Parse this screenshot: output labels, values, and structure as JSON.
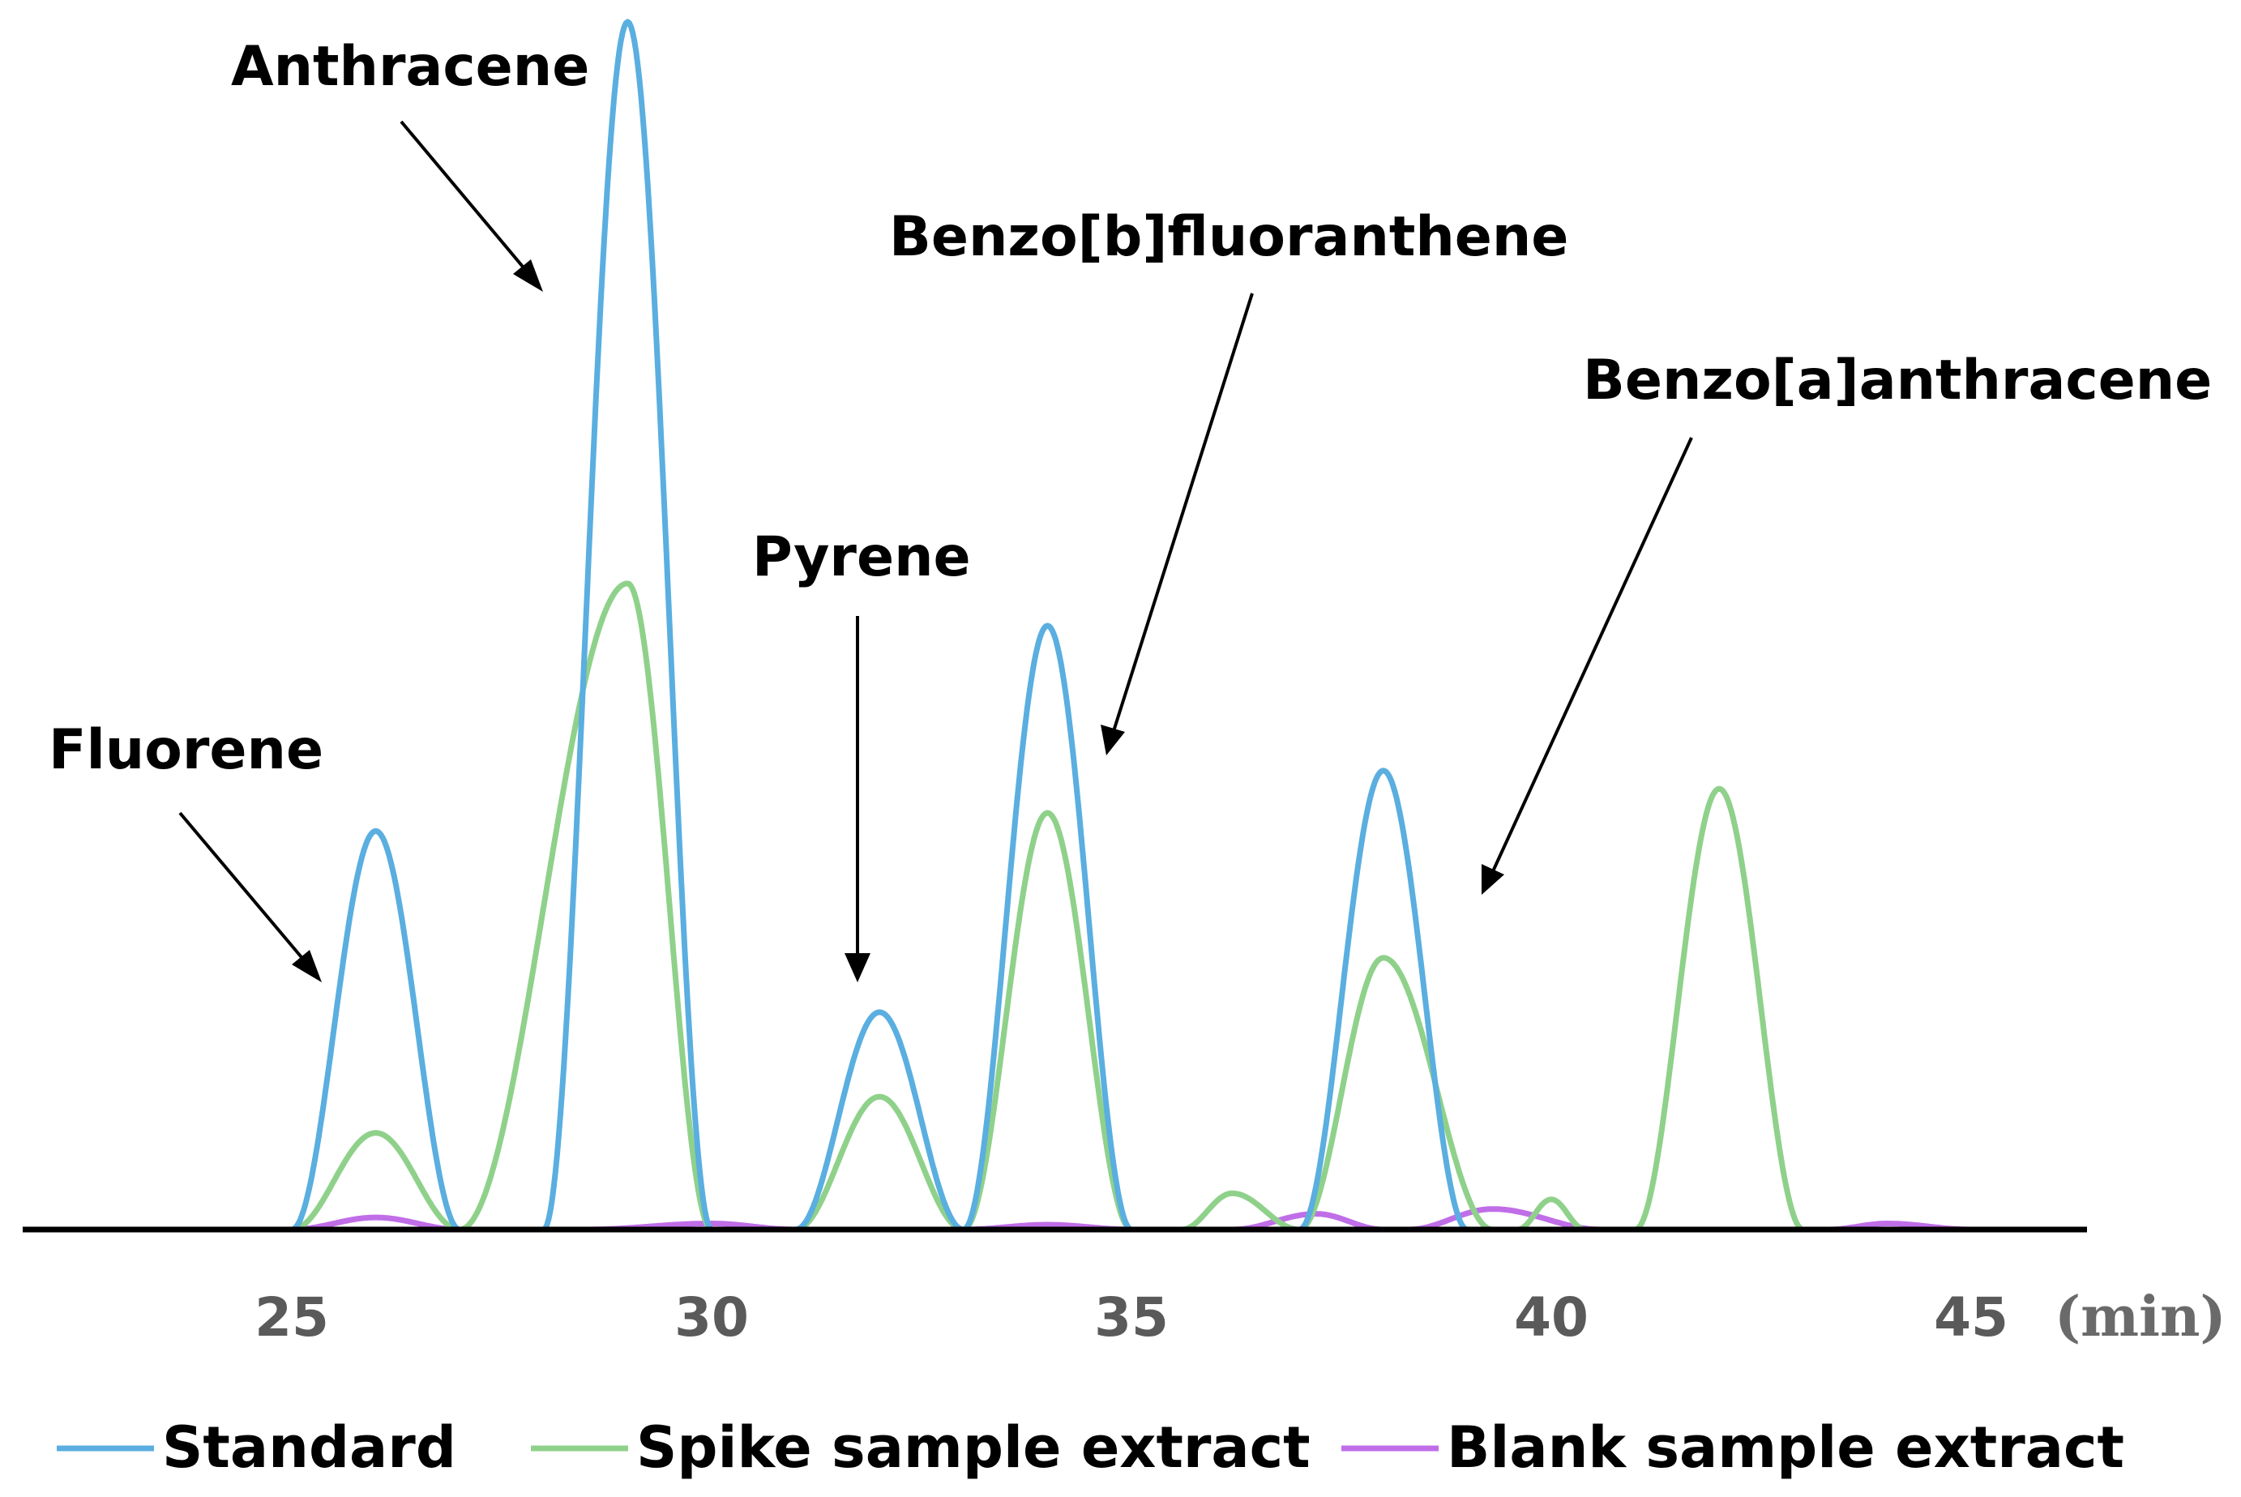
{
  "chart_data": {
    "type": "line",
    "title": "",
    "xlabel": "(min)",
    "ylabel": "",
    "xlim": [
      22,
      47
    ],
    "ylim": [
      0,
      100
    ],
    "x_ticks": [
      25,
      30,
      35,
      40,
      45
    ],
    "grid": false,
    "legend_position": "bottom",
    "series": [
      {
        "name": "Standard",
        "color": "#5aaee0",
        "peaks": [
          {
            "x": 26,
            "height": 33,
            "start": 25,
            "end": 27
          },
          {
            "x": 29,
            "height": 100,
            "start": 28,
            "end": 30
          },
          {
            "x": 32,
            "height": 18,
            "start": 31,
            "end": 33
          },
          {
            "x": 34,
            "height": 50,
            "start": 33,
            "end": 35
          },
          {
            "x": 38,
            "height": 38,
            "start": 37,
            "end": 39
          }
        ]
      },
      {
        "name": "Spike sample extract",
        "color": "#8fd18a",
        "peaks": [
          {
            "x": 26,
            "height": 8,
            "start": 25,
            "end": 27
          },
          {
            "x": 29,
            "height": 53.5,
            "start": 27,
            "end": 30
          },
          {
            "x": 32,
            "height": 11,
            "start": 31,
            "end": 33
          },
          {
            "x": 34,
            "height": 34.5,
            "start": 33,
            "end": 35
          },
          {
            "x": 36.2,
            "height": 3,
            "start": 35.6,
            "end": 37
          },
          {
            "x": 38,
            "height": 22.5,
            "start": 37,
            "end": 39.3
          },
          {
            "x": 40,
            "height": 2.5,
            "start": 39.6,
            "end": 40.4
          },
          {
            "x": 42,
            "height": 36.5,
            "start": 41,
            "end": 43
          }
        ]
      },
      {
        "name": "Blank sample extract",
        "color": "#c06ee8",
        "peaks": [
          {
            "x": 26,
            "height": 1,
            "start": 25,
            "end": 27
          },
          {
            "x": 30,
            "height": 0.5,
            "start": 28.5,
            "end": 31
          },
          {
            "x": 34,
            "height": 0.4,
            "start": 33,
            "end": 35
          },
          {
            "x": 37.2,
            "height": 1.3,
            "start": 36.2,
            "end": 38
          },
          {
            "x": 39.3,
            "height": 1.7,
            "start": 38.3,
            "end": 40.6
          },
          {
            "x": 44,
            "height": 0.5,
            "start": 43.3,
            "end": 45
          }
        ]
      }
    ],
    "annotations": [
      {
        "text": "Anthracene",
        "target_x": 29
      },
      {
        "text": "Fluorene",
        "target_x": 26
      },
      {
        "text": "Pyrene",
        "target_x": 32
      },
      {
        "text": "Benzo[b]fluoranthene",
        "target_x": 34
      },
      {
        "text": "Benzo[a]anthracene",
        "target_x": 38
      }
    ]
  }
}
